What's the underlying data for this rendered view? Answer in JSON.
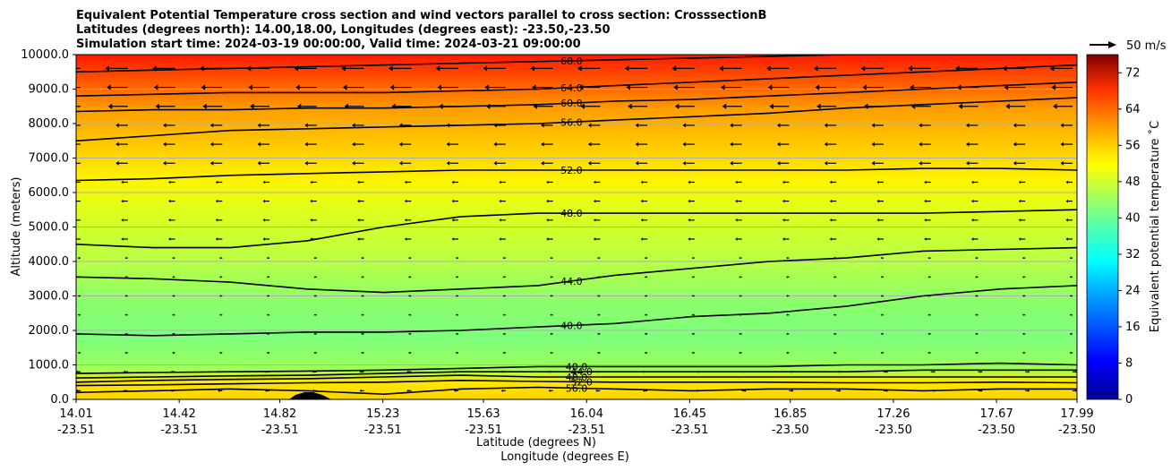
{
  "chart_data": {
    "type": "heatmap",
    "title_lines": [
      "Equivalent Potential Temperature cross section and wind vectors parallel to cross section: CrosssectionB",
      "Latitudes (degrees north): 14.00,18.00, Longitudes (degrees east): -23.50,-23.50",
      "Simulation start time: 2024-03-19 00:00:00, Valid time: 2024-03-21 09:00:00"
    ],
    "xlabel_1": "Latitude (degrees N)",
    "xlabel_2": "Longitude (degrees E)",
    "ylabel": "Altitude (meters)",
    "ylim": [
      0,
      10000
    ],
    "yticks": [
      "0.0",
      "1000.0",
      "2000.0",
      "3000.0",
      "4000.0",
      "5000.0",
      "6000.0",
      "7000.0",
      "8000.0",
      "9000.0",
      "10000.0"
    ],
    "xticks": [
      {
        "lat": "14.01",
        "lon": "-23.51"
      },
      {
        "lat": "14.42",
        "lon": "-23.51"
      },
      {
        "lat": "14.82",
        "lon": "-23.51"
      },
      {
        "lat": "15.23",
        "lon": "-23.51"
      },
      {
        "lat": "15.63",
        "lon": "-23.51"
      },
      {
        "lat": "16.04",
        "lon": "-23.51"
      },
      {
        "lat": "16.45",
        "lon": "-23.51"
      },
      {
        "lat": "16.85",
        "lon": "-23.50"
      },
      {
        "lat": "17.26",
        "lon": "-23.50"
      },
      {
        "lat": "17.67",
        "lon": "-23.50"
      },
      {
        "lat": "17.99",
        "lon": "-23.50"
      }
    ],
    "xlim": [
      14.01,
      17.99
    ],
    "colorbar": {
      "label": "Equivalent potential temperature $^\\circ$C",
      "ticks": [
        "0",
        "8",
        "16",
        "24",
        "32",
        "40",
        "48",
        "56",
        "64",
        "72"
      ],
      "range": [
        0,
        76
      ]
    },
    "quiver_key": "50 m/s",
    "grid": "horizontal",
    "contours": [
      {
        "level": 40,
        "label": "40.0",
        "alt": [
          1900,
          1850,
          1900,
          1950,
          1950,
          2000,
          2100,
          2200,
          2400,
          2500,
          2700,
          3000,
          3200,
          3300
        ]
      },
      {
        "level": 44,
        "label": "44.0",
        "alt": [
          3550,
          3500,
          3400,
          3200,
          3100,
          3200,
          3300,
          3600,
          3800,
          4000,
          4100,
          4300,
          4350,
          4400
        ]
      },
      {
        "level": 48,
        "label": "48.0",
        "alt": [
          4500,
          4400,
          4400,
          4600,
          5000,
          5300,
          5400,
          5400,
          5400,
          5400,
          5400,
          5400,
          5450,
          5500
        ]
      },
      {
        "level": 52,
        "label": "52.0",
        "alt": [
          6350,
          6400,
          6500,
          6550,
          6600,
          6650,
          6650,
          6650,
          6650,
          6650,
          6650,
          6700,
          6700,
          6650
        ]
      },
      {
        "level": 56,
        "label": "56.0",
        "alt": [
          7500,
          7650,
          7800,
          7850,
          7900,
          7950,
          8000,
          8100,
          8200,
          8300,
          8450,
          8550,
          8650,
          8750
        ]
      },
      {
        "level": 60,
        "label": "60.0",
        "alt": [
          8350,
          8400,
          8400,
          8450,
          8450,
          8500,
          8550,
          8650,
          8700,
          8800,
          8900,
          9000,
          9100,
          9200
        ]
      },
      {
        "level": 64,
        "label": "64.0",
        "alt": [
          8800,
          8850,
          8900,
          8900,
          8900,
          8950,
          9000,
          9100,
          9200,
          9300,
          9400,
          9500,
          9600,
          9700
        ]
      },
      {
        "level": 68,
        "label": "68.0",
        "alt": [
          9500,
          9550,
          9600,
          9650,
          9700,
          9750,
          9800,
          9850,
          9900,
          9950,
          10000,
          10000,
          10000,
          10000
        ]
      }
    ],
    "low_contours": [
      {
        "label": "40.0",
        "alt": [
          750,
          780,
          800,
          820,
          850,
          900,
          950,
          950,
          950,
          950,
          1000,
          1000,
          1050,
          1000
        ]
      },
      {
        "label": "44.0",
        "alt": [
          620,
          650,
          680,
          700,
          750,
          800,
          800,
          800,
          800,
          800,
          800,
          850,
          850,
          850
        ]
      },
      {
        "label": "48.0",
        "alt": [
          500,
          550,
          580,
          600,
          650,
          700,
          650,
          650,
          650,
          650,
          650,
          650,
          650,
          650
        ]
      },
      {
        "label": "52.0",
        "alt": [
          400,
          420,
          450,
          480,
          500,
          550,
          520,
          500,
          500,
          500,
          480,
          480,
          500,
          480
        ]
      },
      {
        "label": "56.0",
        "alt": [
          200,
          250,
          300,
          250,
          150,
          300,
          350,
          300,
          250,
          300,
          300,
          250,
          300,
          300
        ]
      }
    ]
  }
}
